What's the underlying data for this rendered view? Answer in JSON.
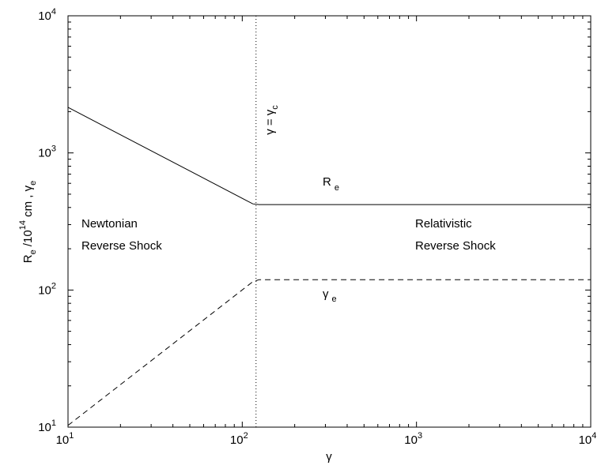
{
  "chart_data": {
    "type": "line",
    "xscale": "log",
    "yscale": "log",
    "xlim": [
      10,
      10000
    ],
    "ylim": [
      10,
      10000
    ],
    "grid": false,
    "xlabel": "γ",
    "ylabel": {
      "main": "R",
      "sub1": "e",
      "mid": " /10",
      "sup": "14",
      "tail": " cm ,  γ",
      "sub2": "e"
    },
    "x_ticks": [
      {
        "value": 10,
        "base": "10",
        "exp": "1"
      },
      {
        "value": 100,
        "base": "10",
        "exp": "2"
      },
      {
        "value": 1000,
        "base": "10",
        "exp": "3"
      },
      {
        "value": 10000,
        "base": "10",
        "exp": "4"
      }
    ],
    "y_ticks": [
      {
        "value": 10,
        "base": "10",
        "exp": "1"
      },
      {
        "value": 100,
        "base": "10",
        "exp": "2"
      },
      {
        "value": 1000,
        "base": "10",
        "exp": "3"
      },
      {
        "value": 10000,
        "base": "10",
        "exp": "4"
      }
    ],
    "series": [
      {
        "key": "re",
        "style": "solid",
        "x": [
          10,
          115,
          125,
          10000
        ],
        "y": [
          2150,
          425,
          420,
          420
        ]
      },
      {
        "key": "gamma_e",
        "style": "dashed",
        "x": [
          10,
          115,
          125,
          10000
        ],
        "y": [
          10.3,
          115,
          119,
          119
        ]
      }
    ],
    "vertical_line": {
      "x": 120,
      "style": "dotted"
    },
    "annotations": {
      "gamma_c": {
        "lhs": "γ = γ",
        "sub": "c"
      },
      "re_label": {
        "main": "R",
        "sub": "e"
      },
      "ge_label": {
        "main": "γ",
        "sub": "e"
      },
      "newtonian": [
        "Newtonian",
        "Reverse Shock"
      ],
      "relativistic": [
        "Relativistic",
        "Reverse Shock"
      ]
    }
  }
}
